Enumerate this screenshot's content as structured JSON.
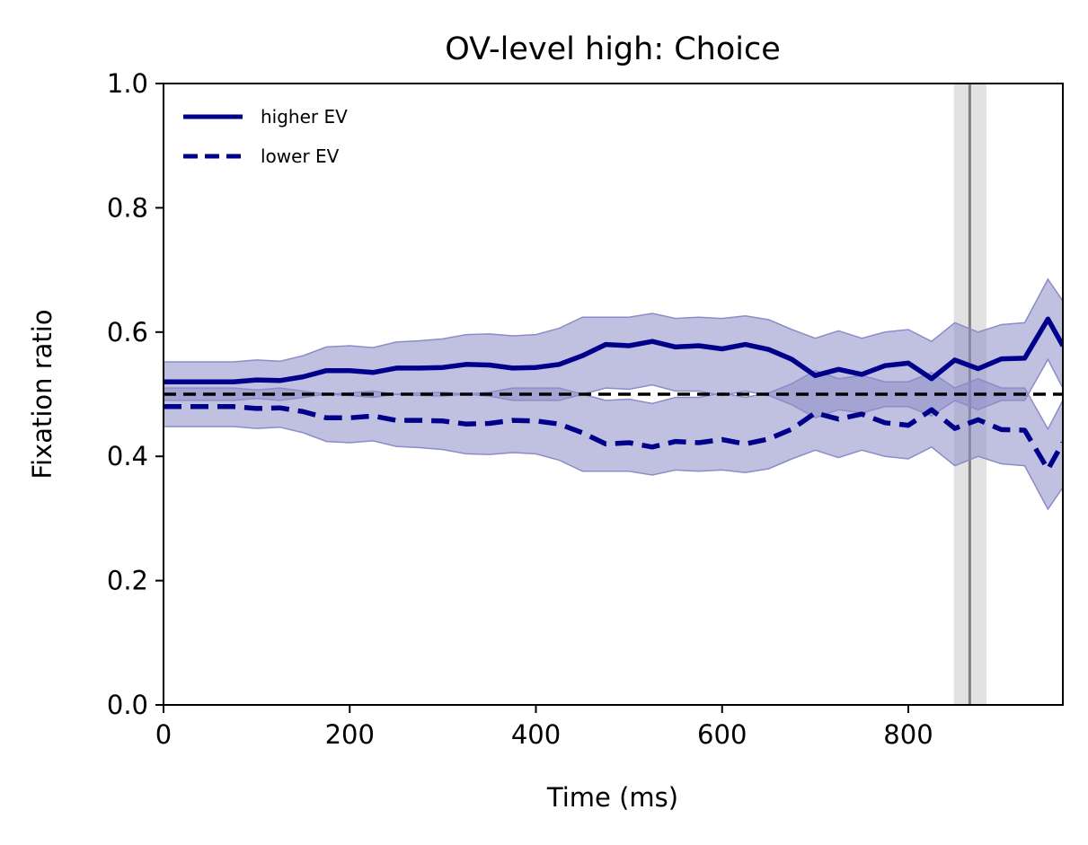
{
  "chart_data": {
    "type": "line",
    "title": "OV-level high: Choice",
    "xlabel": "Time (ms)",
    "ylabel": "Fixation ratio",
    "xlim": [
      0,
      966
    ],
    "ylim": [
      0,
      1
    ],
    "xticks": [
      "0",
      "200",
      "400",
      "600",
      "800"
    ],
    "yticks": [
      "0.0",
      "0.2",
      "0.4",
      "0.6",
      "0.8",
      "1.0"
    ],
    "grid": false,
    "legend_position": "top-left",
    "colors": {
      "series": "#00008b",
      "band": "#8c8cc8",
      "reference_line": "#000000",
      "marker_line": "#808080",
      "marker_band": "#e0e0e0"
    },
    "reference_line": {
      "y": 0.5,
      "style": "dashed"
    },
    "marker": {
      "x": 866,
      "band": [
        849,
        884
      ]
    },
    "x": [
      0,
      25,
      50,
      75,
      100,
      125,
      150,
      175,
      200,
      225,
      250,
      275,
      300,
      325,
      350,
      375,
      400,
      425,
      450,
      475,
      500,
      525,
      550,
      575,
      600,
      625,
      650,
      675,
      700,
      725,
      750,
      775,
      800,
      825,
      850,
      875,
      900,
      925,
      950,
      966
    ],
    "series": [
      {
        "name": "higher EV",
        "style": "solid",
        "values": [
          0.52,
          0.52,
          0.52,
          0.52,
          0.523,
          0.522,
          0.528,
          0.538,
          0.538,
          0.535,
          0.542,
          0.542,
          0.543,
          0.548,
          0.547,
          0.542,
          0.543,
          0.548,
          0.562,
          0.58,
          0.578,
          0.585,
          0.576,
          0.578,
          0.573,
          0.58,
          0.572,
          0.556,
          0.53,
          0.54,
          0.532,
          0.546,
          0.55,
          0.525,
          0.555,
          0.541,
          0.557,
          0.558,
          0.621,
          0.578
        ],
        "lower": [
          0.49,
          0.49,
          0.49,
          0.49,
          0.493,
          0.49,
          0.495,
          0.5,
          0.498,
          0.495,
          0.5,
          0.498,
          0.497,
          0.5,
          0.497,
          0.49,
          0.49,
          0.49,
          0.5,
          0.51,
          0.508,
          0.515,
          0.505,
          0.505,
          0.498,
          0.505,
          0.498,
          0.483,
          0.462,
          0.475,
          0.47,
          0.48,
          0.48,
          0.465,
          0.49,
          0.475,
          0.49,
          0.49,
          0.556,
          0.51
        ],
        "upper": [
          0.552,
          0.552,
          0.552,
          0.552,
          0.555,
          0.553,
          0.562,
          0.576,
          0.578,
          0.575,
          0.584,
          0.586,
          0.589,
          0.596,
          0.597,
          0.594,
          0.596,
          0.606,
          0.624,
          0.624,
          0.624,
          0.63,
          0.622,
          0.624,
          0.622,
          0.626,
          0.62,
          0.604,
          0.59,
          0.602,
          0.59,
          0.6,
          0.604,
          0.585,
          0.615,
          0.6,
          0.612,
          0.615,
          0.685,
          0.65
        ]
      },
      {
        "name": "lower EV",
        "style": "dashed",
        "values": [
          0.48,
          0.48,
          0.48,
          0.48,
          0.477,
          0.478,
          0.472,
          0.462,
          0.462,
          0.465,
          0.458,
          0.458,
          0.457,
          0.452,
          0.453,
          0.458,
          0.457,
          0.452,
          0.438,
          0.42,
          0.422,
          0.415,
          0.424,
          0.422,
          0.427,
          0.42,
          0.428,
          0.444,
          0.47,
          0.46,
          0.468,
          0.454,
          0.45,
          0.475,
          0.445,
          0.459,
          0.443,
          0.442,
          0.379,
          0.422
        ],
        "lower": [
          0.448,
          0.448,
          0.448,
          0.448,
          0.445,
          0.447,
          0.438,
          0.424,
          0.422,
          0.425,
          0.416,
          0.414,
          0.411,
          0.404,
          0.403,
          0.406,
          0.404,
          0.394,
          0.376,
          0.376,
          0.376,
          0.37,
          0.378,
          0.376,
          0.378,
          0.374,
          0.38,
          0.396,
          0.41,
          0.398,
          0.41,
          0.4,
          0.396,
          0.415,
          0.385,
          0.4,
          0.388,
          0.385,
          0.315,
          0.35
        ],
        "upper": [
          0.51,
          0.51,
          0.51,
          0.51,
          0.507,
          0.51,
          0.505,
          0.5,
          0.502,
          0.505,
          0.5,
          0.502,
          0.503,
          0.5,
          0.503,
          0.51,
          0.51,
          0.51,
          0.5,
          0.49,
          0.492,
          0.485,
          0.495,
          0.495,
          0.502,
          0.495,
          0.502,
          0.517,
          0.538,
          0.525,
          0.53,
          0.52,
          0.52,
          0.535,
          0.51,
          0.525,
          0.51,
          0.51,
          0.444,
          0.49
        ]
      }
    ]
  }
}
